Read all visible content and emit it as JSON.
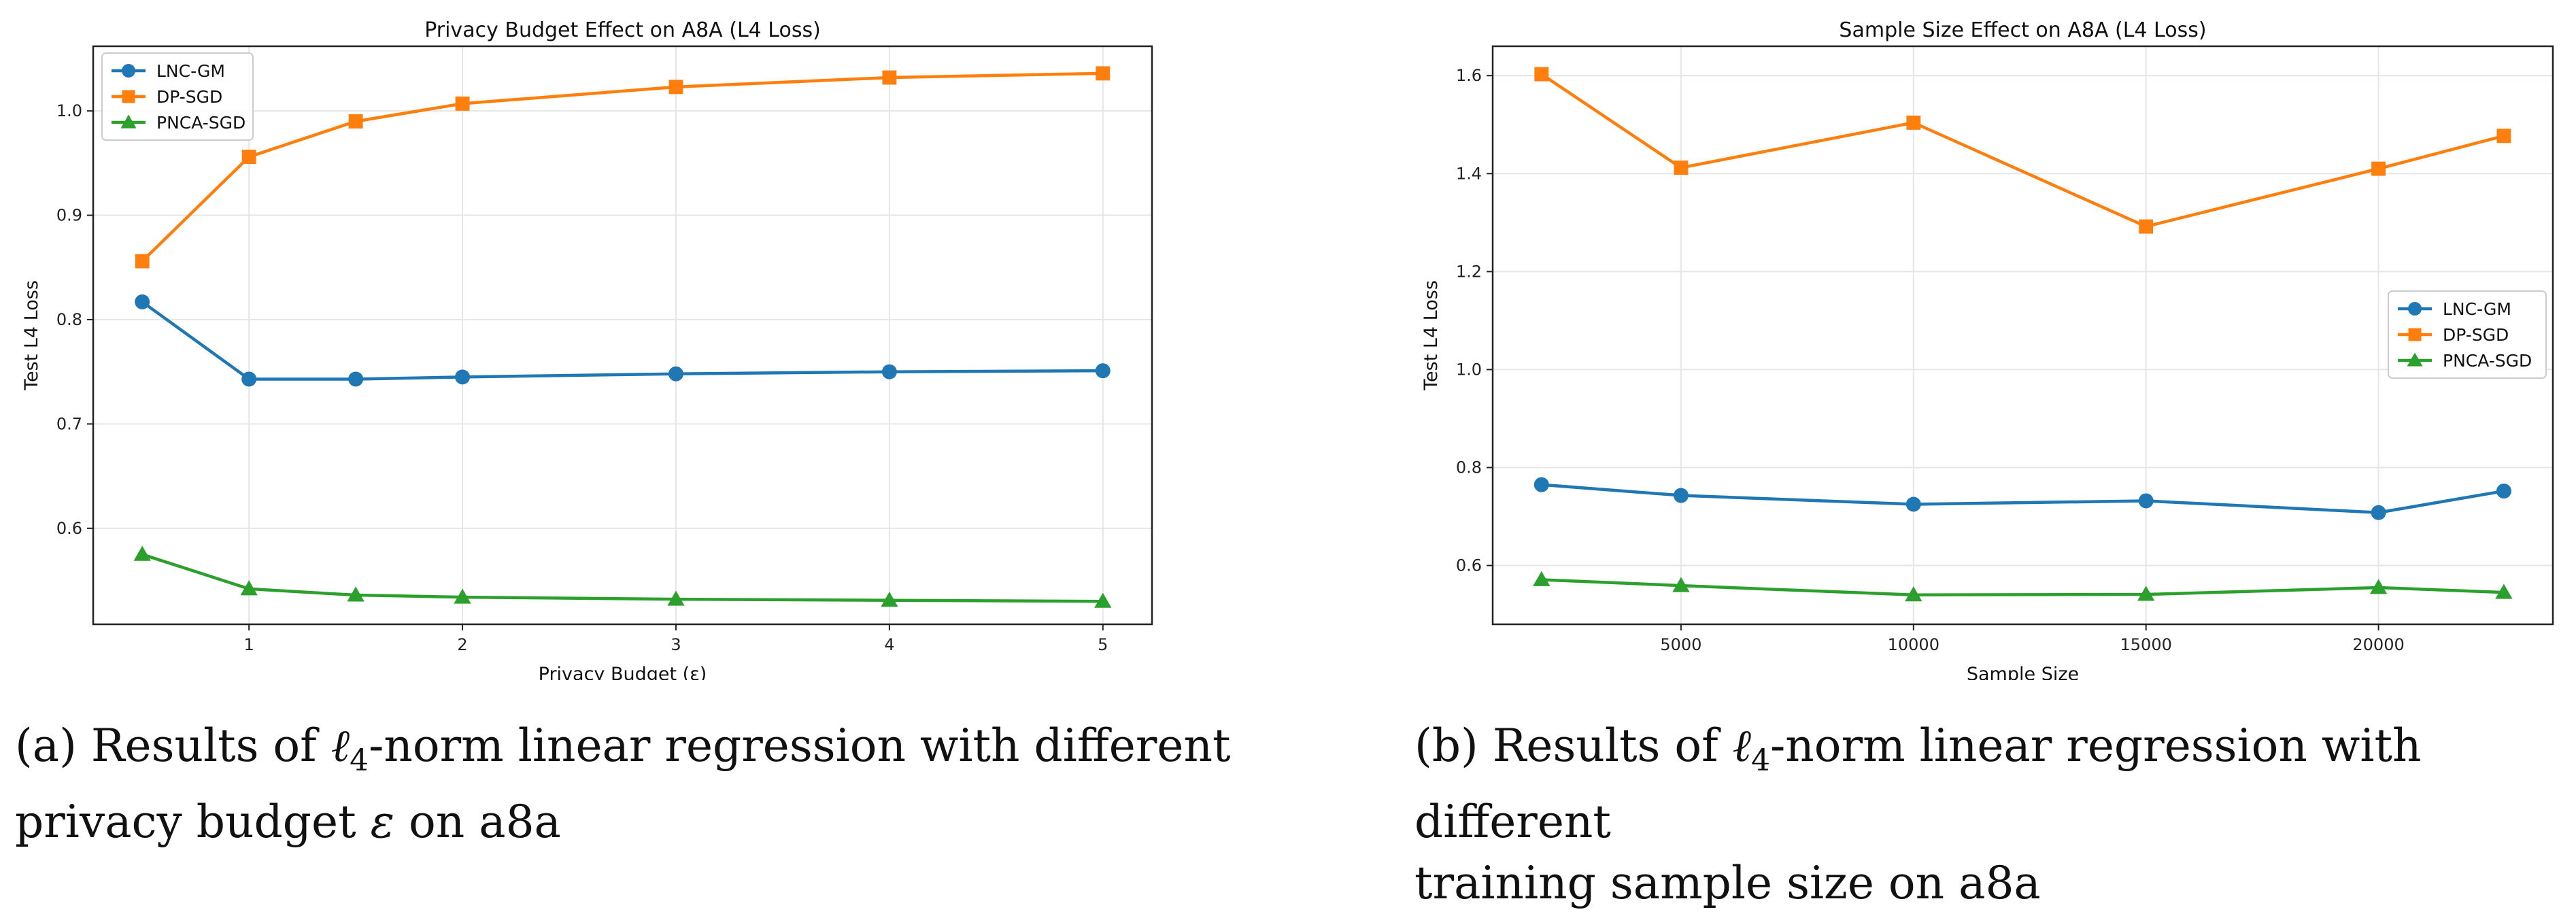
{
  "chart_data": [
    {
      "type": "line",
      "title": "Privacy Budget Effect on A8A (L4 Loss)",
      "xlabel": "Privacy Budget (ε)",
      "ylabel": "Test L4 Loss",
      "x": [
        0.5,
        1,
        1.5,
        2,
        3,
        4,
        5
      ],
      "xlim": [
        0.27,
        5.23
      ],
      "ylim": [
        0.508,
        1.062
      ],
      "xticks": [
        1,
        2,
        3,
        4,
        5
      ],
      "xtick_labels": [
        "1",
        "2",
        "3",
        "4",
        "5"
      ],
      "yticks": [
        0.6,
        0.7,
        0.8,
        0.9,
        1.0
      ],
      "ytick_labels": [
        "0.6",
        "0.7",
        "0.8",
        "0.9",
        "1.0"
      ],
      "grid": true,
      "legend_position": "top-left",
      "series": [
        {
          "name": "LNC-GM",
          "color": "#1f77b4",
          "marker": "circle",
          "values": [
            0.817,
            0.743,
            0.743,
            0.745,
            0.748,
            0.75,
            0.751
          ]
        },
        {
          "name": "DP-SGD",
          "color": "#ff7f0e",
          "marker": "square",
          "values": [
            0.856,
            0.956,
            0.99,
            1.007,
            1.023,
            1.032,
            1.036
          ]
        },
        {
          "name": "PNCA-SGD",
          "color": "#2ca02c",
          "marker": "triangle",
          "values": [
            0.575,
            0.542,
            0.536,
            0.534,
            0.532,
            0.531,
            0.53
          ]
        }
      ]
    },
    {
      "type": "line",
      "title": "Sample Size Effect on A8A (L4 Loss)",
      "xlabel": "Sample Size",
      "ylabel": "Test L4 Loss",
      "x": [
        2000,
        5000,
        10000,
        15000,
        20000,
        22696
      ],
      "xlim": [
        950,
        23750
      ],
      "ylim": [
        0.48,
        1.66
      ],
      "xticks": [
        5000,
        10000,
        15000,
        20000
      ],
      "xtick_labels": [
        "5000",
        "10000",
        "15000",
        "20000"
      ],
      "yticks": [
        0.6,
        0.8,
        1.0,
        1.2,
        1.4,
        1.6
      ],
      "ytick_labels": [
        "0.6",
        "0.8",
        "1.0",
        "1.2",
        "1.4",
        "1.6"
      ],
      "grid": true,
      "legend_position": "center-right",
      "series": [
        {
          "name": "LNC-GM",
          "color": "#1f77b4",
          "marker": "circle",
          "values": [
            0.765,
            0.743,
            0.725,
            0.732,
            0.708,
            0.752
          ]
        },
        {
          "name": "DP-SGD",
          "color": "#ff7f0e",
          "marker": "square",
          "values": [
            1.603,
            1.412,
            1.504,
            1.292,
            1.41,
            1.477
          ]
        },
        {
          "name": "PNCA-SGD",
          "color": "#2ca02c",
          "marker": "triangle",
          "values": [
            0.571,
            0.559,
            0.54,
            0.541,
            0.555,
            0.545
          ]
        }
      ]
    }
  ],
  "captions": {
    "a": {
      "prefix": "(a) Results of ",
      "ell": "ℓ",
      "sub": "4",
      "line1_rest": "-norm linear regression with different",
      "line2_pre": "privacy budget ",
      "eps": "ε",
      "line2_post": " on a8a"
    },
    "b": {
      "prefix": "(b) Results of ",
      "ell": "ℓ",
      "sub": "4",
      "line1_rest": "-norm linear regression with different",
      "line2": "training sample size on a8a"
    }
  }
}
